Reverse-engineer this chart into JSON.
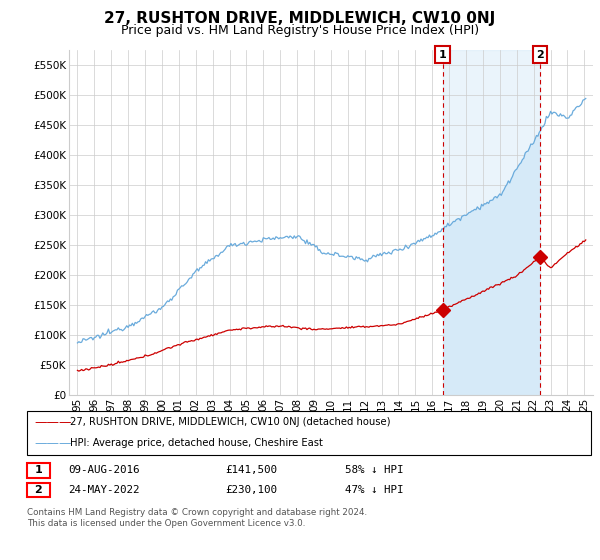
{
  "title": "27, RUSHTON DRIVE, MIDDLEWICH, CW10 0NJ",
  "subtitle": "Price paid vs. HM Land Registry's House Price Index (HPI)",
  "ylim": [
    0,
    575000
  ],
  "yticks": [
    0,
    50000,
    100000,
    150000,
    200000,
    250000,
    300000,
    350000,
    400000,
    450000,
    500000,
    550000
  ],
  "ytick_labels": [
    "£0",
    "£50K",
    "£100K",
    "£150K",
    "£200K",
    "£250K",
    "£300K",
    "£350K",
    "£400K",
    "£450K",
    "£500K",
    "£550K"
  ],
  "xlim": [
    1994.5,
    2025.5
  ],
  "hpi_color": "#6aabdc",
  "hpi_fill_color": "#d6eaf8",
  "property_color": "#cc0000",
  "point1_x": 2016.61,
  "point1_y": 141500,
  "point2_x": 2022.38,
  "point2_y": 230100,
  "legend_label1": "27, RUSHTON DRIVE, MIDDLEWICH, CW10 0NJ (detached house)",
  "legend_label2": "HPI: Average price, detached house, Cheshire East",
  "table_row1_num": "1",
  "table_row1_date": "09-AUG-2016",
  "table_row1_price": "£141,500",
  "table_row1_hpi": "58% ↓ HPI",
  "table_row2_num": "2",
  "table_row2_date": "24-MAY-2022",
  "table_row2_price": "£230,100",
  "table_row2_hpi": "47% ↓ HPI",
  "footnote_line1": "Contains HM Land Registry data © Crown copyright and database right 2024.",
  "footnote_line2": "This data is licensed under the Open Government Licence v3.0.",
  "background_color": "#ffffff",
  "grid_color": "#cccccc",
  "title_fontsize": 11,
  "subtitle_fontsize": 9,
  "tick_fontsize": 7.5,
  "label_fontsize": 8
}
